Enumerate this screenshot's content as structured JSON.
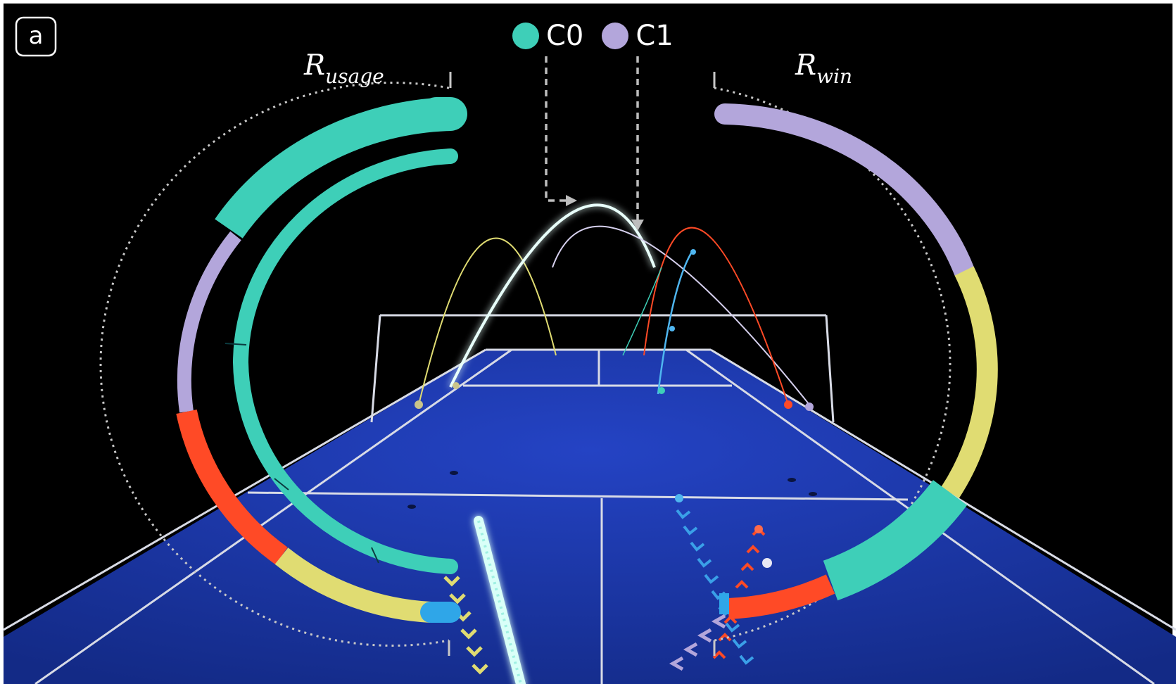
{
  "panel_label": "a",
  "legend": [
    {
      "label": "C0",
      "color": "#3ecfb8"
    },
    {
      "label": "C1",
      "color": "#b3a6db"
    }
  ],
  "left_ring": {
    "label_main": "R",
    "label_sub": "usage"
  },
  "right_ring": {
    "label_main": "R",
    "label_sub": "win"
  },
  "colors": {
    "background": "#000000",
    "court": "#17339e",
    "court_lines": "#d8dbe6",
    "teal": "#3ecfb8",
    "lavender": "#b3a6db",
    "red_orange": "#ff4a26",
    "yellow": "#e0dc72",
    "blue": "#2fa6e8",
    "dotted_guide": "#c8c8c8"
  },
  "icons": [
    "dashed-arrow-icon",
    "chevron-trail-icon"
  ]
}
